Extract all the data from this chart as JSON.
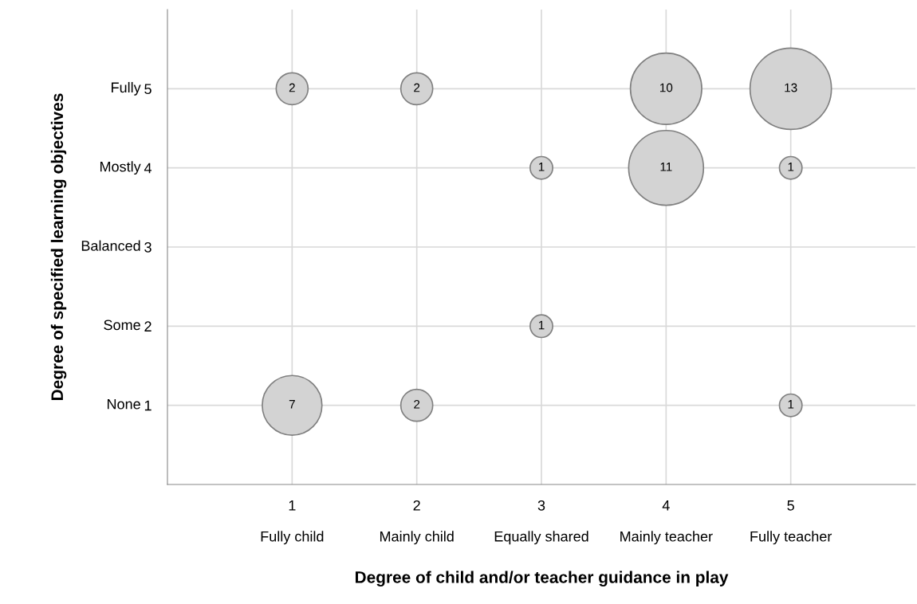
{
  "chart_data": {
    "type": "bubble",
    "xlabel": "Degree of child and/or teacher guidance in play",
    "ylabel": "Degree of specified learning objectives",
    "xlim": [
      0,
      6
    ],
    "ylim": [
      0,
      6
    ],
    "xticks": [
      1,
      2,
      3,
      4,
      5
    ],
    "annotations": [
      "Fully child",
      "Mainly child",
      "Equally shared",
      "Mainly teacher",
      "Fully teacher",
      "None",
      "Some",
      "Balanced",
      "Mostly",
      "Fully"
    ],
    "yticks": [
      1,
      2,
      3,
      4,
      5
    ],
    "grid": true,
    "series": [
      {
        "color": "#d3d3d3",
        "x": [
          1,
          2,
          4,
          5,
          3,
          4,
          5,
          3,
          1,
          2,
          5
        ],
        "values": [
          5,
          5,
          5,
          5,
          4,
          4,
          4,
          2,
          1,
          1,
          1
        ],
        "sizes": [
          2,
          2,
          10,
          13,
          1,
          11,
          1,
          1,
          7,
          2,
          1
        ],
        "value_labels": [
          "2",
          "2",
          "10",
          "13",
          "1",
          "11",
          "1",
          "1",
          "7",
          "2",
          "1"
        ]
      }
    ]
  }
}
